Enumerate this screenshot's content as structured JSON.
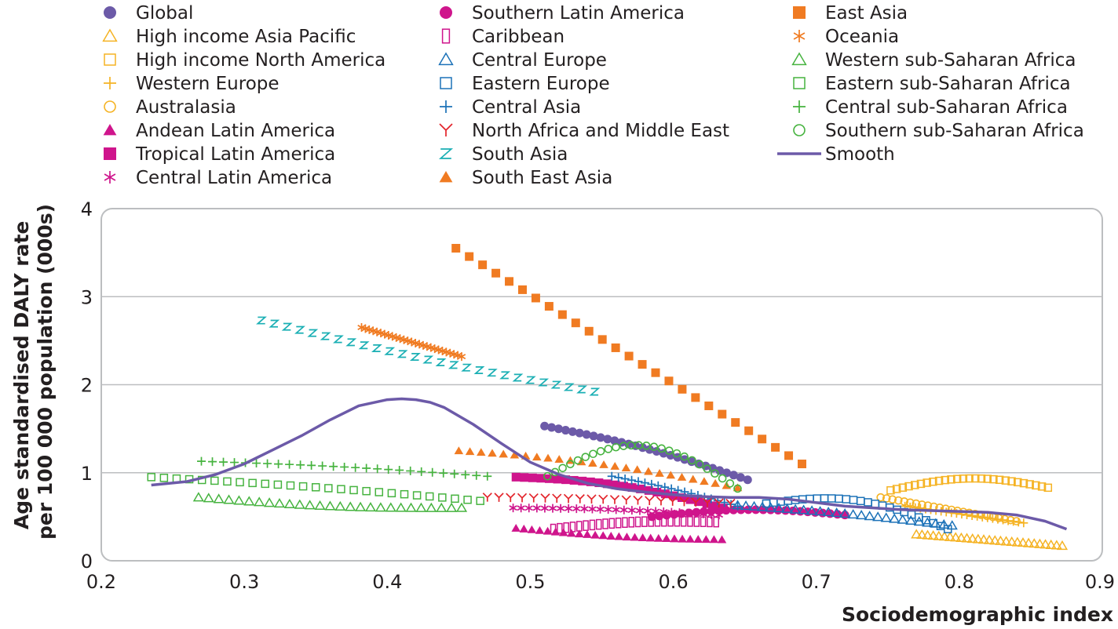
{
  "chart_data": {
    "type": "scatter",
    "title": "",
    "xlabel": "Sociodemographic index",
    "ylabel_lines": [
      "Age standardised DALY rate",
      "per 100 000 population (000s)"
    ],
    "xlim": [
      0.2,
      0.9
    ],
    "ylim": [
      0,
      4
    ],
    "xticks": [
      0.2,
      0.3,
      0.4,
      0.5,
      0.6,
      0.7,
      0.8,
      0.9
    ],
    "yticks": [
      0,
      1,
      2,
      3,
      4
    ],
    "xtick_labels": [
      "0.2",
      "0.3",
      "0.4",
      "0.5",
      "0.6",
      "0.7",
      "0.8",
      "0.9"
    ],
    "ytick_labels": [
      "0",
      "1",
      "2",
      "3",
      "4"
    ],
    "grid": "horizontal",
    "legend_position": "top",
    "series": [
      {
        "name": "Global",
        "marker": "circle-filled",
        "color": "#6c5aa8",
        "x_range": [
          0.51,
          0.652
        ],
        "y_start": 1.53,
        "y_end": 0.92,
        "y_mid_offset": 0.05,
        "n": 30
      },
      {
        "name": "High income Asia Pacific",
        "marker": "triangle-open",
        "color": "#f5b324",
        "x_range": [
          0.77,
          0.872
        ],
        "y_start": 0.3,
        "y_end": 0.17,
        "y_mid_offset": 0,
        "n": 27
      },
      {
        "name": "High income North America",
        "marker": "square-open",
        "color": "#f5b324",
        "x_range": [
          0.752,
          0.862
        ],
        "y_start": 0.8,
        "y_end": 0.83,
        "y_mid_offset": 0.12,
        "n": 27
      },
      {
        "name": "Western Europe",
        "marker": "plus",
        "color": "#f5b324",
        "x_range": [
          0.762,
          0.845
        ],
        "y_start": 0.62,
        "y_end": 0.43,
        "y_mid_offset": 0,
        "n": 24
      },
      {
        "name": "Australasia",
        "marker": "circle-open",
        "color": "#f5b324",
        "x_range": [
          0.745,
          0.84
        ],
        "y_start": 0.72,
        "y_end": 0.45,
        "y_mid_offset": 0,
        "n": 24
      },
      {
        "name": "Andean Latin America",
        "marker": "triangle-filled",
        "color": "#cf158c",
        "x_range": [
          0.49,
          0.634
        ],
        "y_start": 0.37,
        "y_end": 0.24,
        "y_mid_offset": -0.03,
        "n": 27
      },
      {
        "name": "Tropical Latin America",
        "marker": "square-filled",
        "color": "#cf158c",
        "x_range": [
          0.49,
          0.635
        ],
        "y_start": 0.95,
        "y_end": 0.6,
        "y_mid_offset": 0.08,
        "n": 26
      },
      {
        "name": "Central Latin America",
        "marker": "asterisk",
        "color": "#cf158c",
        "x_range": [
          0.488,
          0.632
        ],
        "y_start": 0.6,
        "y_end": 0.52,
        "y_mid_offset": 0.02,
        "n": 27
      },
      {
        "name": "Southern Latin America",
        "marker": "circle-filled",
        "color": "#cf158c",
        "x_range": [
          0.585,
          0.72
        ],
        "y_start": 0.5,
        "y_end": 0.52,
        "y_mid_offset": 0.07,
        "n": 27
      },
      {
        "name": "Caribbean",
        "marker": "rect-tall-open",
        "color": "#cf158c",
        "x_range": [
          0.516,
          0.63
        ],
        "y_start": 0.36,
        "y_end": 0.44,
        "y_mid_offset": 0.04,
        "n": 26
      },
      {
        "name": "Central Europe",
        "marker": "triangle-open",
        "color": "#1c72b8",
        "x_range": [
          0.645,
          0.795
        ],
        "y_start": 0.63,
        "y_end": 0.4,
        "y_mid_offset": 0.02,
        "n": 27
      },
      {
        "name": "Eastern Europe",
        "marker": "square-open",
        "color": "#1c72b8",
        "x_range": [
          0.665,
          0.792
        ],
        "y_start": 0.65,
        "y_end": 0.36,
        "y_mid_offset": 0.18,
        "n": 26
      },
      {
        "name": "Central Asia",
        "marker": "plus",
        "color": "#1c72b8",
        "x_range": [
          0.557,
          0.645
        ],
        "y_start": 0.96,
        "y_end": 0.62,
        "y_mid_offset": 0.02,
        "n": 20
      },
      {
        "name": "North Africa and Middle East",
        "marker": "y-glyph",
        "color": "#e3242b",
        "x_range": [
          0.47,
          0.64
        ],
        "y_start": 0.72,
        "y_end": 0.65,
        "y_mid_offset": 0.01,
        "n": 22
      },
      {
        "name": "South Asia",
        "marker": "z-glyph",
        "color": "#1aafb4",
        "x_range": [
          0.312,
          0.545
        ],
        "y_start": 2.73,
        "y_end": 1.92,
        "y_mid_offset": -0.04,
        "n": 27
      },
      {
        "name": "South East  Asia",
        "marker": "triangle-filled",
        "color": "#f07b22",
        "x_range": [
          0.45,
          0.645
        ],
        "y_start": 1.25,
        "y_end": 0.83,
        "y_mid_offset": 0.06,
        "n": 26
      },
      {
        "name": "East Asia",
        "marker": "square-filled",
        "color": "#f07b22",
        "x_range": [
          0.448,
          0.69
        ],
        "y_start": 3.55,
        "y_end": 1.1,
        "y_mid_offset": 0,
        "n": 27
      },
      {
        "name": "Oceania",
        "marker": "asterisk",
        "color": "#f07b22",
        "x_range": [
          0.382,
          0.452
        ],
        "y_start": 2.65,
        "y_end": 2.32,
        "y_mid_offset": 0,
        "n": 27
      },
      {
        "name": "Western sub-Saharan Africa",
        "marker": "triangle-open",
        "color": "#46b33f",
        "x_range": [
          0.268,
          0.452
        ],
        "y_start": 0.72,
        "y_end": 0.6,
        "y_mid_offset": -0.04,
        "n": 27
      },
      {
        "name": "Eastern sub-Saharan Africa",
        "marker": "square-open",
        "color": "#46b33f",
        "x_range": [
          0.235,
          0.465
        ],
        "y_start": 0.95,
        "y_end": 0.68,
        "y_mid_offset": 0.02,
        "n": 27
      },
      {
        "name": "Central sub-Saharan Africa",
        "marker": "plus",
        "color": "#46b33f",
        "x_range": [
          0.27,
          0.47
        ],
        "y_start": 1.13,
        "y_end": 0.96,
        "y_mid_offset": 0.02,
        "n": 27
      },
      {
        "name": "Southern sub-Saharan Africa",
        "marker": "circle-open",
        "color": "#46b33f",
        "x_range": [
          0.512,
          0.645
        ],
        "y_start": 0.96,
        "y_end": 0.82,
        "y_mid_offset": 0.42,
        "n": 26
      },
      {
        "name": "Smooth",
        "marker": "line",
        "color": "#6c5aa8",
        "x": [
          0.235,
          0.26,
          0.28,
          0.3,
          0.32,
          0.34,
          0.36,
          0.38,
          0.4,
          0.41,
          0.42,
          0.43,
          0.44,
          0.46,
          0.48,
          0.5,
          0.52,
          0.54,
          0.56,
          0.58,
          0.6,
          0.62,
          0.64,
          0.66,
          0.68,
          0.7,
          0.72,
          0.74,
          0.76,
          0.78,
          0.8,
          0.82,
          0.84,
          0.86,
          0.875
        ],
        "y": [
          0.86,
          0.9,
          0.98,
          1.1,
          1.26,
          1.42,
          1.6,
          1.76,
          1.83,
          1.84,
          1.83,
          1.8,
          1.74,
          1.55,
          1.33,
          1.12,
          0.98,
          0.88,
          0.82,
          0.78,
          0.75,
          0.73,
          0.72,
          0.72,
          0.7,
          0.66,
          0.62,
          0.6,
          0.58,
          0.57,
          0.56,
          0.55,
          0.52,
          0.45,
          0.36
        ]
      }
    ]
  }
}
